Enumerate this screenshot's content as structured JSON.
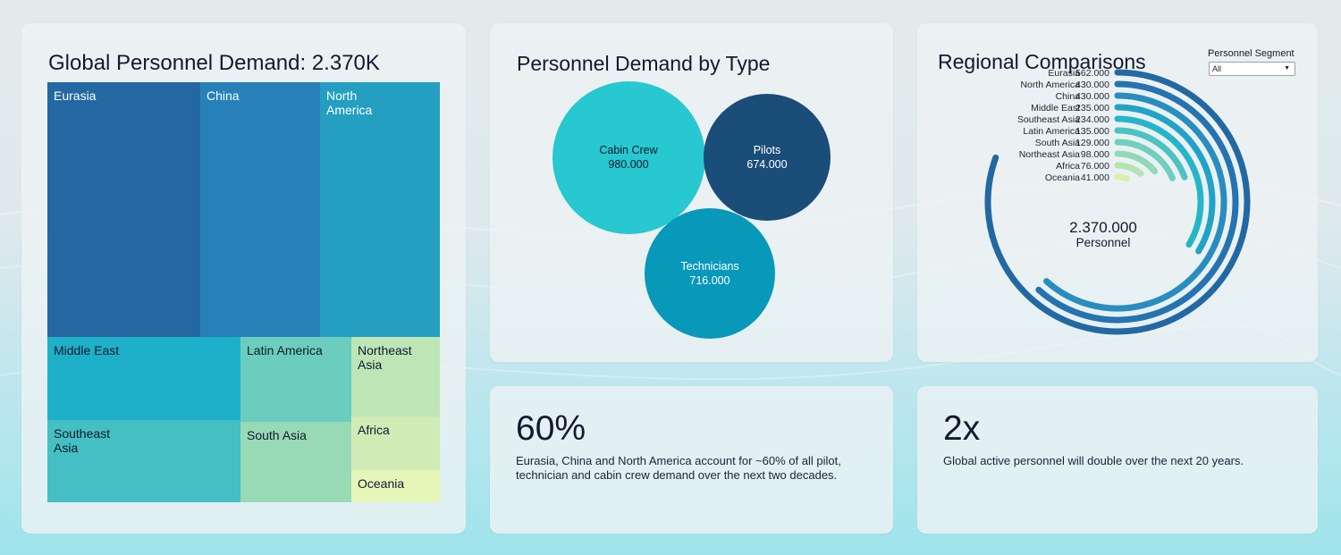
{
  "treemap": {
    "title": "Global Personnel Demand: 2.370K",
    "cells": [
      {
        "label": "Eurasia",
        "value": 562,
        "color": "#2368a2",
        "text_color": "#ffffff"
      },
      {
        "label": "China",
        "value": 430,
        "color": "#2880b8",
        "text_color": "#ffffff"
      },
      {
        "label": "North America",
        "value": 430,
        "color": "#249ec1",
        "text_color": "#ffffff"
      },
      {
        "label": "Middle East",
        "value": 235,
        "color": "#1eb0c9",
        "text_color": "#111a2e"
      },
      {
        "label": "Southeast Asia",
        "value": 234,
        "color": "#45bfc3",
        "text_color": "#111a2e"
      },
      {
        "label": "Latin America",
        "value": 135,
        "color": "#6acdbd",
        "text_color": "#111a2e"
      },
      {
        "label": "South Asia",
        "value": 129,
        "color": "#98d9b6",
        "text_color": "#111a2e"
      },
      {
        "label": "Northeast Asia",
        "value": 98,
        "color": "#bde5b5",
        "text_color": "#111a2e"
      },
      {
        "label": "Africa",
        "value": 76,
        "color": "#d0ebb6",
        "text_color": "#111a2e"
      },
      {
        "label": "Oceania",
        "value": 41,
        "color": "#e6f5b8",
        "text_color": "#111a2e"
      }
    ]
  },
  "bubbles": {
    "title": "Personnel Demand by Type",
    "items": [
      {
        "label": "Cabin Crew",
        "value_text": "980.000",
        "value": 980,
        "color": "#27c8d0",
        "text_color": "#111a2e"
      },
      {
        "label": "Pilots",
        "value_text": "674.000",
        "value": 674,
        "color": "#1a4d78",
        "text_color": "#ffffff"
      },
      {
        "label": "Technicians",
        "value_text": "716.000",
        "value": 716,
        "color": "#0898ba",
        "text_color": "#ffffff"
      }
    ]
  },
  "regional": {
    "title": "Regional Comparisons",
    "segment_label": "Personnel Segment",
    "segment_value": "All",
    "center_value": "2.370.000",
    "center_label": "Personnel"
  },
  "chart_data": [
    {
      "type": "treemap",
      "title": "Global Personnel Demand: 2.370K",
      "categories": [
        "Eurasia",
        "China",
        "North America",
        "Middle East",
        "Southeast Asia",
        "Latin America",
        "South Asia",
        "Northeast Asia",
        "Africa",
        "Oceania"
      ],
      "values": [
        562,
        430,
        430,
        235,
        234,
        135,
        129,
        98,
        76,
        41
      ]
    },
    {
      "type": "bubble",
      "title": "Personnel Demand by Type",
      "categories": [
        "Cabin Crew",
        "Pilots",
        "Technicians"
      ],
      "values": [
        980,
        674,
        716
      ]
    },
    {
      "type": "radial-bar",
      "title": "Regional Comparisons",
      "max": 562,
      "series": [
        {
          "label": "Eurasia",
          "value": 562,
          "value_text": "562.000",
          "color": "#2368a2"
        },
        {
          "label": "North America",
          "value": 430,
          "value_text": "430.000",
          "color": "#2573b0"
        },
        {
          "label": "China",
          "value": 430,
          "value_text": "430.000",
          "color": "#2a8dc0"
        },
        {
          "label": "Middle East",
          "value": 235,
          "value_text": "235.000",
          "color": "#20a3c6"
        },
        {
          "label": "Southeast Asia",
          "value": 234,
          "value_text": "234.000",
          "color": "#24b5c8"
        },
        {
          "label": "Latin America",
          "value": 135,
          "value_text": "135.000",
          "color": "#4cc3c0"
        },
        {
          "label": "South Asia",
          "value": 129,
          "value_text": "129.000",
          "color": "#6fd0bd"
        },
        {
          "label": "Northeast Asia",
          "value": 98,
          "value_text": "98.000",
          "color": "#8fd9b8"
        },
        {
          "label": "Africa",
          "value": 76,
          "value_text": "76.000",
          "color": "#b3e4b4"
        },
        {
          "label": "Oceania",
          "value": 41,
          "value_text": "41.000",
          "color": "#d8f0b2"
        }
      ]
    }
  ],
  "stats": [
    {
      "number": "60%",
      "text": "Eurasia, China and North America account for ~60% of all pilot, technician and cabin crew demand over the next two decades."
    },
    {
      "number": "2x",
      "text": "Global active personnel will double over the next 20 years."
    }
  ]
}
